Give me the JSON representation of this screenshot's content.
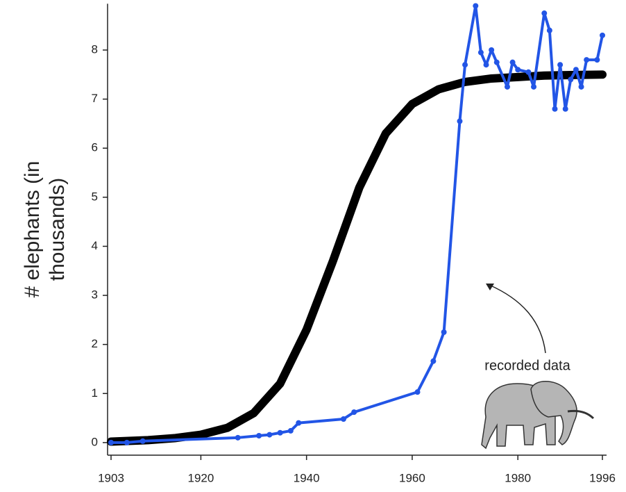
{
  "chart_data": {
    "type": "line",
    "y_label": [
      "# elephants  (in",
      "thousands)"
    ],
    "annotation": "recorded data",
    "xlim": [
      1903,
      1996
    ],
    "xticks": [
      1903,
      1920,
      1940,
      1960,
      1980,
      1996
    ],
    "ylim": [
      -0.2,
      9
    ],
    "yticks": [
      0,
      1,
      2,
      3,
      4,
      5,
      6,
      7,
      8
    ],
    "series": [
      {
        "color": "#000000",
        "markers": false,
        "x": [
          1903,
          1910,
          1915,
          1920,
          1925,
          1930,
          1935,
          1940,
          1945,
          1950,
          1955,
          1960,
          1965,
          1970,
          1975,
          1980,
          1985,
          1990,
          1996
        ],
        "values": [
          0.02,
          0.05,
          0.09,
          0.16,
          0.3,
          0.6,
          1.2,
          2.3,
          3.7,
          5.2,
          6.3,
          6.9,
          7.2,
          7.35,
          7.42,
          7.45,
          7.48,
          7.49,
          7.5
        ]
      },
      {
        "color": "#2255e6",
        "markers": true,
        "x": [
          1903,
          1906,
          1909,
          1927,
          1931,
          1933,
          1935,
          1937,
          1938.5,
          1947,
          1949,
          1961,
          1964,
          1966,
          1969,
          1970,
          1972,
          1973,
          1974,
          1975,
          1976,
          1978,
          1979,
          1980,
          1982,
          1983,
          1985,
          1986,
          1987,
          1988,
          1989,
          1990,
          1991,
          1992,
          1993,
          1995,
          1996
        ],
        "values": [
          0,
          0,
          0.03,
          0.1,
          0.14,
          0.16,
          0.2,
          0.24,
          0.4,
          0.48,
          0.62,
          1.03,
          1.66,
          2.25,
          6.55,
          7.7,
          8.9,
          7.95,
          7.7,
          8.0,
          7.75,
          7.25,
          7.75,
          7.6,
          7.55,
          7.25,
          8.75,
          8.4,
          6.8,
          7.7,
          6.8,
          7.4,
          7.6,
          7.25,
          7.8,
          7.8,
          8.3
        ]
      }
    ]
  }
}
